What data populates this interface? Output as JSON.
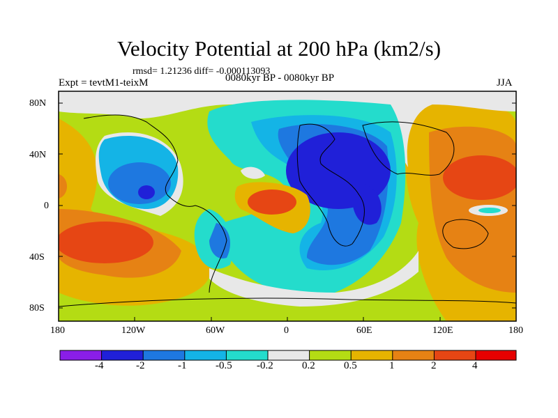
{
  "title": "Velocity Potential at 200 hPa (km2/s)",
  "stats": "rmsd= 1.21236 diff= -0.000113093",
  "experiment": "Expt = tevtM1-teixM",
  "period": "0080kyr BP - 0080kyr BP",
  "season": "JJA",
  "lat_ticks": [
    "80N",
    "40N",
    "0",
    "40S",
    "80S"
  ],
  "lon_ticks": [
    "180",
    "120W",
    "60W",
    "0",
    "60E",
    "120E",
    "180"
  ],
  "colorbar": {
    "labels": [
      "-4",
      "-2",
      "-1",
      "-0.5",
      "-0.2",
      "0.2",
      "0.5",
      "1",
      "2",
      "4"
    ],
    "colors": [
      "#8a1ee8",
      "#2020d8",
      "#1e78e0",
      "#14b4e6",
      "#24dccc",
      "#e8e8e8",
      "#b4dc14",
      "#e6b400",
      "#e68214",
      "#e64614",
      "#e60000"
    ]
  }
}
